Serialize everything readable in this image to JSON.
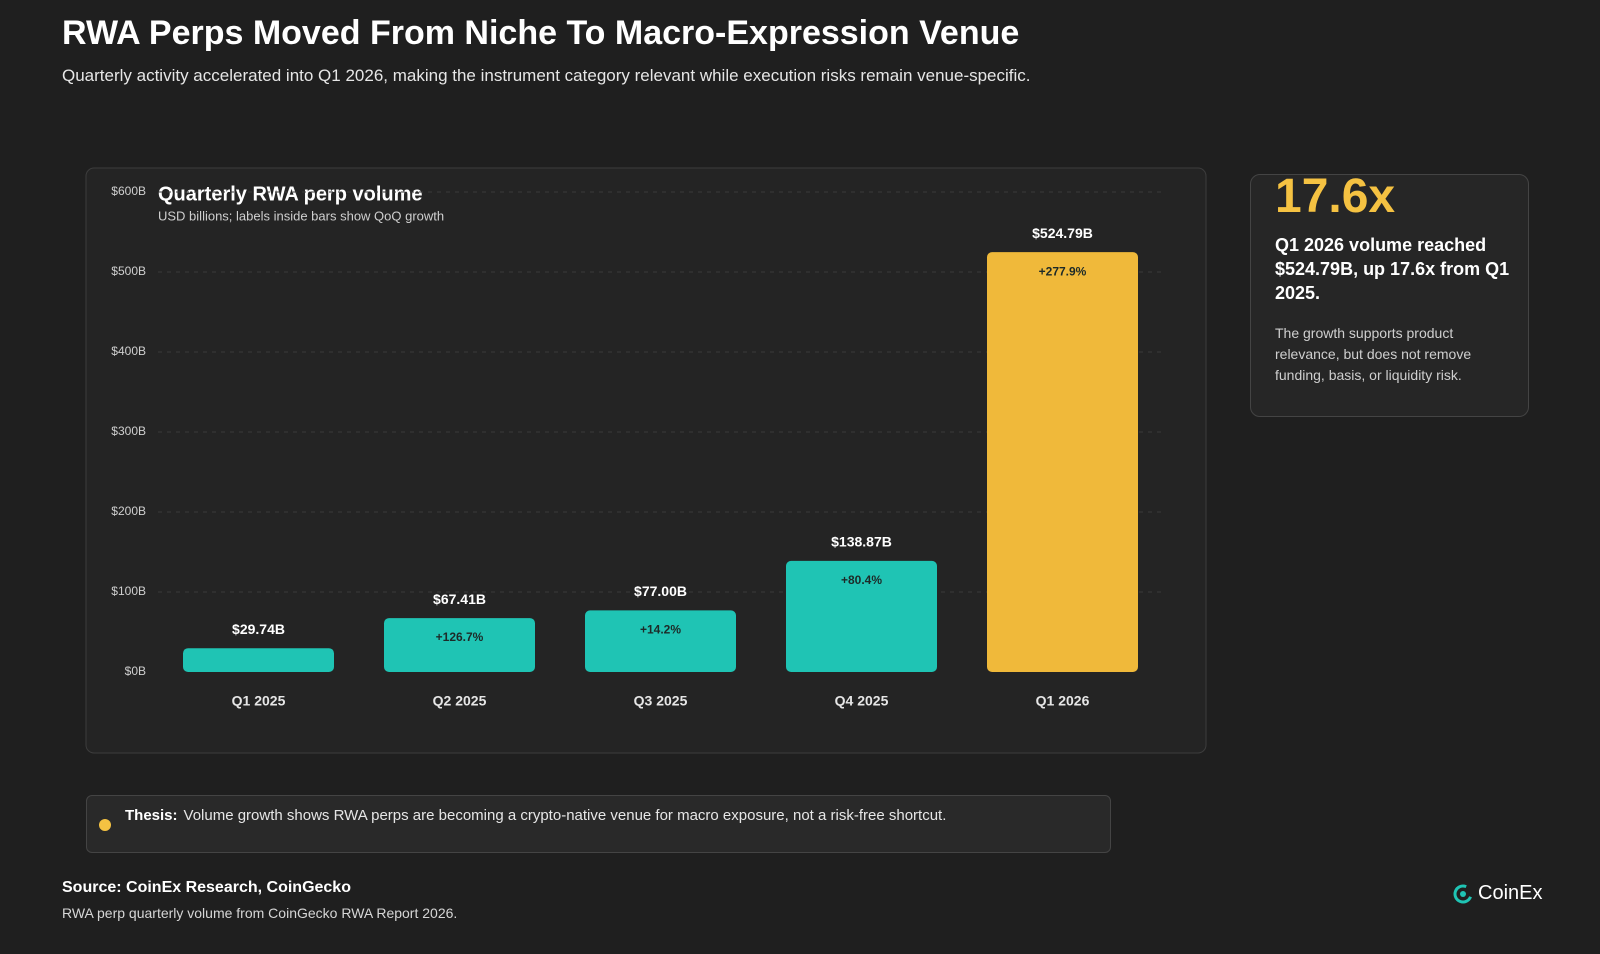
{
  "header": {
    "title": "RWA Perps Moved From Niche To Macro-Expression Venue",
    "subtitle": "Quarterly activity accelerated into Q1 2026, making the instrument category relevant while execution risks remain venue-specific."
  },
  "chart_data": {
    "type": "bar",
    "title": "Quarterly RWA perp volume",
    "subtitle": "USD billions; labels inside bars show QoQ growth",
    "categories": [
      "Q1 2025",
      "Q2 2025",
      "Q3 2025",
      "Q4 2025",
      "Q1 2026"
    ],
    "values": [
      29.74,
      67.41,
      77.0,
      138.87,
      524.79
    ],
    "value_labels": [
      "$29.74B",
      "$67.41B",
      "$77.00B",
      "$138.87B",
      "$524.79B"
    ],
    "growth_labels": [
      null,
      "+126.7%",
      "+14.2%",
      "+80.4%",
      "+277.9%"
    ],
    "colors": [
      "#1fc4b4",
      "#1fc4b4",
      "#1fc4b4",
      "#1fc4b4",
      "#f0b93a"
    ],
    "ylim": [
      0,
      600
    ],
    "yticks": [
      {
        "value": 0,
        "label": "$0B"
      },
      {
        "value": 100,
        "label": "$100B"
      },
      {
        "value": 200,
        "label": "$200B"
      },
      {
        "value": 300,
        "label": "$300B"
      },
      {
        "value": 400,
        "label": "$400B"
      },
      {
        "value": 500,
        "label": "$500B"
      },
      {
        "value": 600,
        "label": "$600B"
      }
    ],
    "grid": true
  },
  "card": {
    "headline": "17.6x",
    "heading": "Q1 2026 volume reached $524.79B, up 17.6x from Q1 2025.",
    "body": "The growth supports product relevance, but does not remove funding, basis, or liquidity risk."
  },
  "thesis": {
    "label": "Thesis:",
    "text": "Volume growth shows RWA perps are becoming a crypto-native venue for macro exposure, not a risk-free shortcut."
  },
  "footer": {
    "source": "Source: CoinEx Research, CoinGecko",
    "note": "RWA perp quarterly volume from CoinGecko RWA Report 2026.",
    "logo": "CoinEx"
  }
}
